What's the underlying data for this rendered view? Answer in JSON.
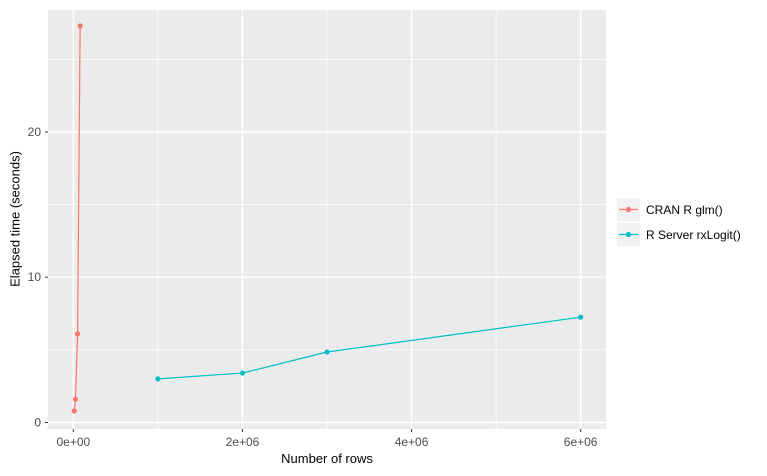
{
  "chart_data": {
    "type": "line",
    "title": "",
    "xlabel": "Number of rows",
    "ylabel": "Elapsed time (seconds)",
    "xlim": [
      -300000,
      6300000
    ],
    "ylim": [
      -0.45,
      28.4
    ],
    "grid": true,
    "legend_position": "right",
    "x_ticks": [
      {
        "value": 0,
        "label": "0e+00"
      },
      {
        "value": 2000000,
        "label": "2e+06"
      },
      {
        "value": 4000000,
        "label": "4e+06"
      },
      {
        "value": 6000000,
        "label": "6e+06"
      }
    ],
    "x_minor_ticks": [
      1000000,
      3000000,
      5000000
    ],
    "y_ticks": [
      {
        "value": 0,
        "label": "0"
      },
      {
        "value": 10,
        "label": "10"
      },
      {
        "value": 20,
        "label": "20"
      }
    ],
    "y_minor_ticks": [
      5,
      15,
      25
    ],
    "series": [
      {
        "name": "CRAN R glm()",
        "color": "#F8766D",
        "points": [
          [
            10000,
            0.8
          ],
          [
            25000,
            1.6
          ],
          [
            50000,
            6.1
          ],
          [
            80000,
            27.3
          ]
        ]
      },
      {
        "name": "R Server rxLogit()",
        "color": "#00BFC4",
        "points": [
          [
            1000000,
            3.0
          ],
          [
            2000000,
            3.4
          ],
          [
            3000000,
            4.85
          ],
          [
            6000000,
            7.25
          ]
        ]
      }
    ]
  },
  "colors": {
    "panel_background": "#EBEBEB",
    "gridline": "#FFFFFF",
    "tick_mark": "#333333",
    "tick_label": "#4D4D4D",
    "axis_title": "#000000",
    "legend_key_background": "#F2F2F2",
    "series_red": "#F8766D",
    "series_teal": "#00BFC4"
  }
}
